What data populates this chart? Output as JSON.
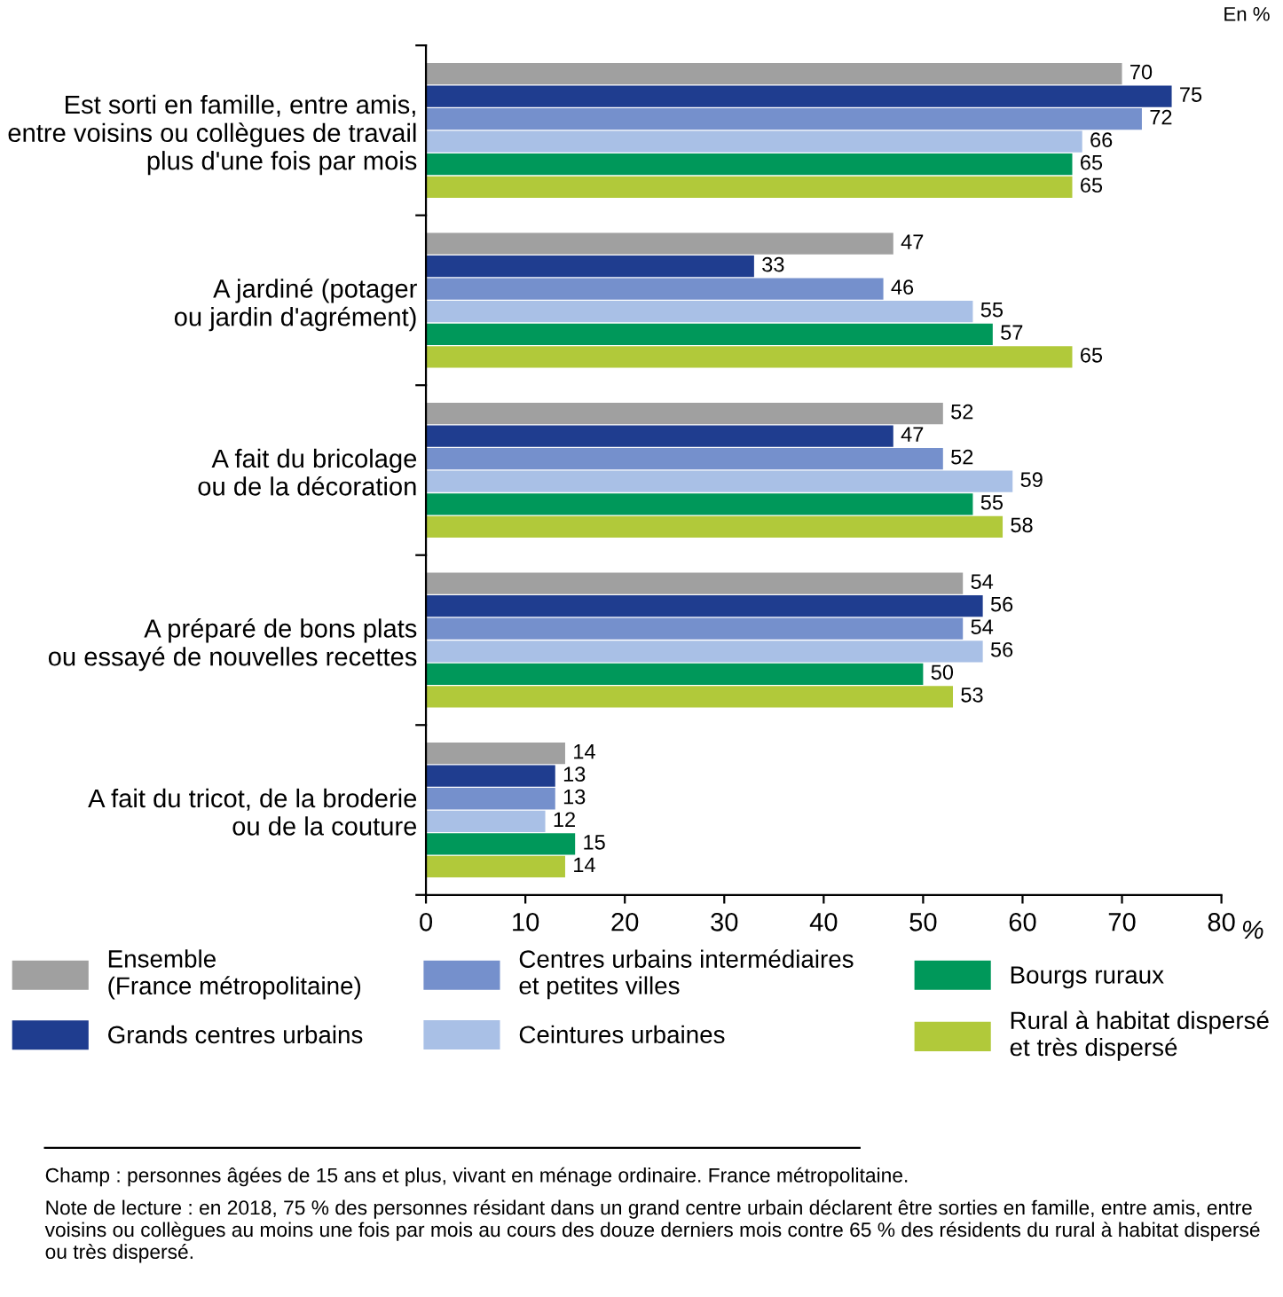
{
  "chart_data": {
    "type": "bar",
    "orientation": "horizontal",
    "categories": [
      "Est sorti en famille, entre amis,\nentre voisins ou collègues de travail\nplus d'une fois par mois",
      "A jardiné (potager\nou jardin d'agrément)",
      "A fait du bricolage\nou de la décoration",
      "A préparé de bons plats\nou essayé de nouvelles recettes",
      "A fait du tricot, de la broderie\nou de la couture"
    ],
    "series": [
      {
        "name": "Ensemble\n(France métropolitaine)",
        "color": "#a0a0a0",
        "values": [
          70,
          47,
          52,
          54,
          14
        ]
      },
      {
        "name": "Grands centres urbains",
        "color": "#1f3d8f",
        "values": [
          75,
          33,
          47,
          56,
          13
        ]
      },
      {
        "name": "Centres urbains intermédiaires\net petites villes",
        "color": "#7590cc",
        "values": [
          72,
          46,
          52,
          54,
          13
        ]
      },
      {
        "name": "Ceintures urbaines",
        "color": "#a9c0e6",
        "values": [
          66,
          55,
          59,
          56,
          12
        ]
      },
      {
        "name": "Bourgs ruraux",
        "color": "#00985a",
        "values": [
          65,
          57,
          55,
          50,
          15
        ]
      },
      {
        "name": "Rural à habitat dispersé\net très dispersé",
        "color": "#b1c93a",
        "values": [
          65,
          65,
          58,
          53,
          14
        ]
      }
    ],
    "xlim": [
      0,
      80
    ],
    "xticks": [
      0,
      10,
      20,
      30,
      40,
      50,
      60,
      70,
      80
    ],
    "xlabel": "%",
    "data_labels": true,
    "grid": false,
    "legend": "bottom",
    "annotations": [
      "En %",
      "Champ : personnes âgées de 15 ans et plus, vivant en ménage ordinaire. France métropolitaine.",
      "Note de lecture : en 2018, 75 % des personnes résidant dans un grand centre urbain déclarent être sorties en famille, entre amis, entre voisins ou collègues au moins une fois par mois au cours des douze derniers mois contre 65 % des résidents du rural à habitat dispersé ou très dispersé."
    ]
  }
}
